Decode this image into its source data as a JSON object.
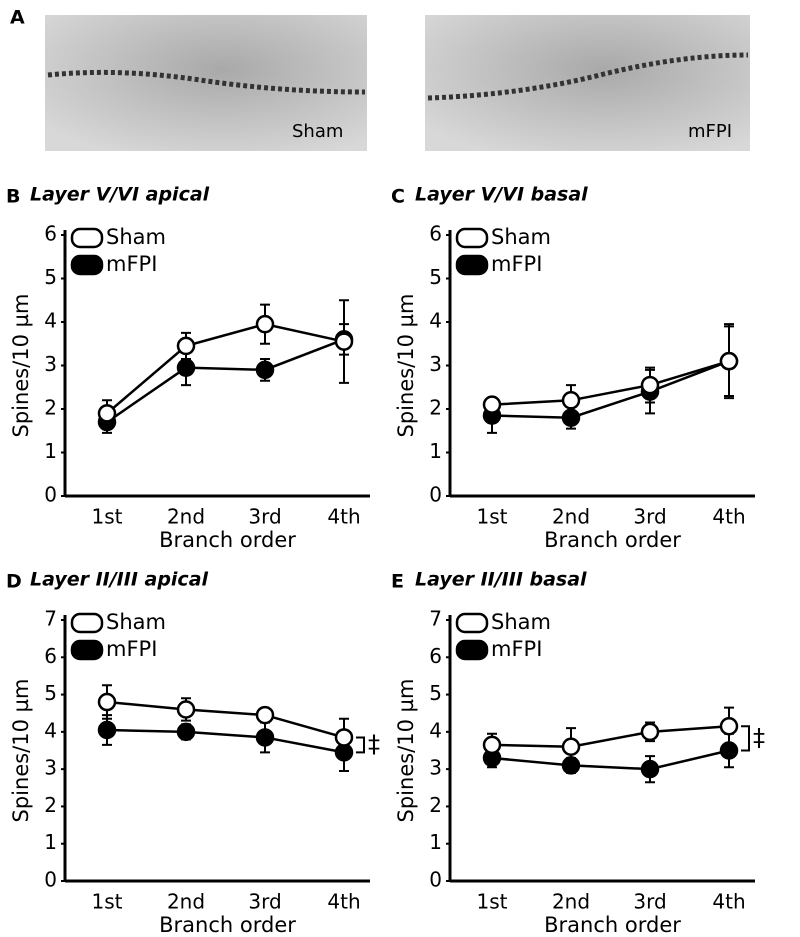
{
  "panel_a": {
    "letter": "A",
    "images": [
      {
        "label": "Sham"
      },
      {
        "label": "mFPI"
      }
    ]
  },
  "chart_data": [
    {
      "type": "line",
      "panel": "B",
      "title": "Layer V/VI apical",
      "xlabel": "Branch order",
      "ylabel": "Spines/10 µm",
      "categories": [
        "1st",
        "2nd",
        "3rd",
        "4th"
      ],
      "series": [
        {
          "name": "Sham",
          "color": "#ffffff",
          "values": [
            1.9,
            3.45,
            3.95,
            3.55
          ],
          "errors": [
            0.3,
            0.3,
            0.45,
            0.95
          ]
        },
        {
          "name": "mFPI",
          "color": "#000000",
          "values": [
            1.7,
            2.95,
            2.9,
            3.6
          ],
          "errors": [
            0.25,
            0.4,
            0.25,
            0.35
          ]
        }
      ],
      "ylim": [
        0,
        6
      ],
      "yticks": [
        0,
        1,
        2,
        3,
        4,
        5,
        6
      ]
    },
    {
      "type": "line",
      "panel": "C",
      "title": "Layer V/VI basal",
      "xlabel": "Branch order",
      "ylabel": "Spines/10 µm",
      "categories": [
        "1st",
        "2nd",
        "3rd",
        "4th"
      ],
      "series": [
        {
          "name": "Sham",
          "color": "#ffffff",
          "values": [
            2.1,
            2.2,
            2.55,
            3.1
          ],
          "errors": [
            0.15,
            0.35,
            0.4,
            0.8
          ]
        },
        {
          "name": "mFPI",
          "color": "#000000",
          "values": [
            1.85,
            1.8,
            2.4,
            3.1
          ],
          "errors": [
            0.4,
            0.25,
            0.5,
            0.85
          ]
        }
      ],
      "ylim": [
        0,
        6
      ],
      "yticks": [
        0,
        1,
        2,
        3,
        4,
        5,
        6
      ]
    },
    {
      "type": "line",
      "panel": "D",
      "title": "Layer II/III apical",
      "xlabel": "Branch order",
      "ylabel": "Spines/10 µm",
      "categories": [
        "1st",
        "2nd",
        "3rd",
        "4th"
      ],
      "series": [
        {
          "name": "Sham",
          "color": "#ffffff",
          "values": [
            4.8,
            4.6,
            4.45,
            3.85
          ],
          "errors": [
            0.45,
            0.3,
            0.15,
            0.5
          ]
        },
        {
          "name": "mFPI",
          "color": "#000000",
          "values": [
            4.05,
            4.0,
            3.85,
            3.45
          ],
          "errors": [
            0.4,
            0.2,
            0.4,
            0.5
          ]
        }
      ],
      "ylim": [
        0,
        7
      ],
      "yticks": [
        0,
        1,
        2,
        3,
        4,
        5,
        6,
        7
      ],
      "annotation": "‡"
    },
    {
      "type": "line",
      "panel": "E",
      "title": "Layer II/III basal",
      "xlabel": "Branch order",
      "ylabel": "Spines/10 µm",
      "categories": [
        "1st",
        "2nd",
        "3rd",
        "4th"
      ],
      "series": [
        {
          "name": "Sham",
          "color": "#ffffff",
          "values": [
            3.65,
            3.6,
            4.0,
            4.15
          ],
          "errors": [
            0.3,
            0.5,
            0.25,
            0.5
          ]
        },
        {
          "name": "mFPI",
          "color": "#000000",
          "values": [
            3.3,
            3.1,
            3.0,
            3.5
          ],
          "errors": [
            0.25,
            0.2,
            0.35,
            0.45
          ]
        }
      ],
      "ylim": [
        0,
        7
      ],
      "yticks": [
        0,
        1,
        2,
        3,
        4,
        5,
        6,
        7
      ],
      "annotation": "‡"
    }
  ]
}
